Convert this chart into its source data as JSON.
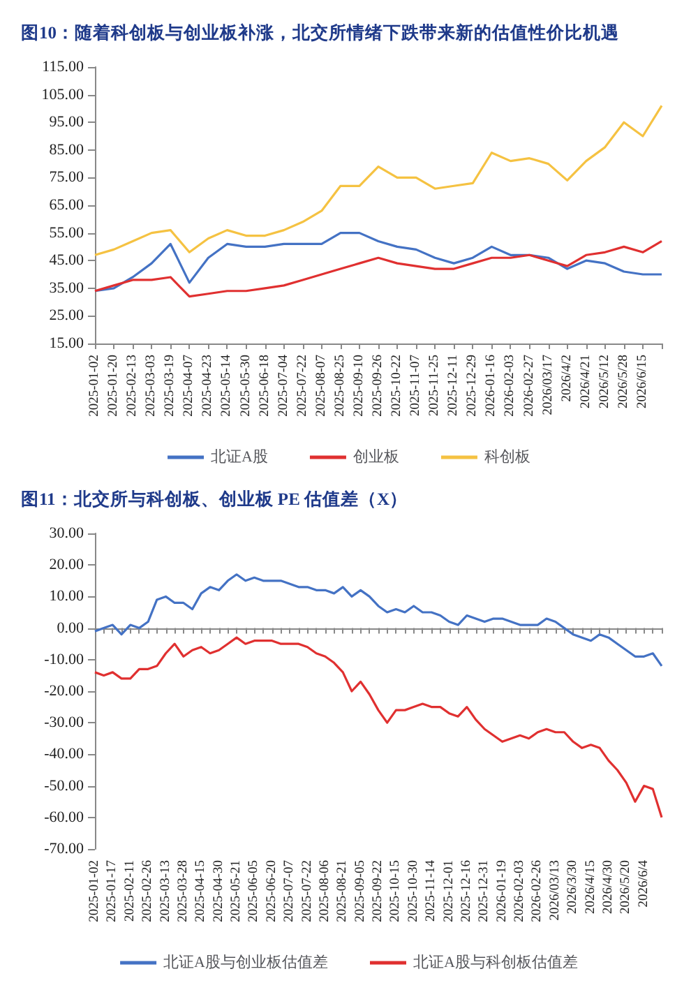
{
  "chart_data": [
    {
      "type": "line",
      "title": "图10：随着科创板与创业板补涨，北交所情绪下跌带来新的估值性价比机遇",
      "categories": [
        "2025-01-02",
        "2025-01-20",
        "2025-02-13",
        "2025-03-03",
        "2025-03-19",
        "2025-04-07",
        "2025-04-23",
        "2025-05-14",
        "2025-05-30",
        "2025-06-18",
        "2025-07-04",
        "2025-07-22",
        "2025-08-07",
        "2025-08-25",
        "2025-09-10",
        "2025-09-26",
        "2025-10-22",
        "2025-11-07",
        "2025-11-25",
        "2025-12-11",
        "2025-12-29",
        "2026-01-16",
        "2026-02-03",
        "2026-02-27",
        "2026/03/17",
        "2026/4/2",
        "2026/4/21",
        "2026/5/12",
        "2026/5/28",
        "2026/6/15",
        null
      ],
      "series": [
        {
          "name": "北证A股",
          "color": "#4472c4",
          "values": [
            34,
            35,
            39,
            44,
            51,
            37,
            46,
            51,
            50,
            50,
            51,
            51,
            51,
            55,
            55,
            52,
            50,
            49,
            46,
            44,
            46,
            50,
            47,
            47,
            46,
            42,
            45,
            44,
            41,
            40,
            40
          ]
        },
        {
          "name": "创业板",
          "color": "#e03030",
          "values": [
            34,
            36,
            38,
            38,
            39,
            32,
            33,
            34,
            34,
            35,
            36,
            38,
            40,
            42,
            44,
            46,
            44,
            43,
            42,
            42,
            44,
            46,
            46,
            47,
            45,
            43,
            47,
            48,
            50,
            48,
            52
          ]
        },
        {
          "name": "科创板",
          "color": "#f5c242",
          "values": [
            47,
            49,
            52,
            55,
            56,
            48,
            53,
            56,
            54,
            54,
            56,
            59,
            63,
            72,
            72,
            79,
            75,
            75,
            71,
            72,
            73,
            84,
            81,
            82,
            80,
            74,
            81,
            86,
            95,
            90,
            101
          ]
        }
      ],
      "ylim": [
        15,
        115
      ],
      "yticks": [
        {
          "value": 15,
          "label": "15.00"
        },
        {
          "value": 25,
          "label": "25.00"
        },
        {
          "value": 35,
          "label": "35.00"
        },
        {
          "value": 45,
          "label": "45.00"
        },
        {
          "value": 55,
          "label": "55.00"
        },
        {
          "value": 65,
          "label": "65.00"
        },
        {
          "value": 75,
          "label": "75.00"
        },
        {
          "value": 85,
          "label": "85.00"
        },
        {
          "value": 95,
          "label": "95.00"
        },
        {
          "value": 105,
          "label": "105.00"
        },
        {
          "value": 115,
          "label": "115.00"
        }
      ],
      "legend": "bottom"
    },
    {
      "type": "line",
      "title": "图11：北交所与科创板、创业板 PE 估值差（X）",
      "categories": [
        "2025-01-02",
        null,
        "2025-01-17",
        null,
        "2025-02-11",
        null,
        "2025-02-26",
        null,
        "2025-03-13",
        null,
        "2025-03-28",
        null,
        "2025-04-15",
        null,
        "2025-04-30",
        null,
        "2025-05-21",
        null,
        "2025-06-05",
        null,
        "2025-06-20",
        null,
        "2025-07-07",
        null,
        "2025-07-22",
        null,
        "2025-08-06",
        null,
        "2025-08-21",
        null,
        "2025-09-05",
        null,
        "2025-09-22",
        null,
        "2025-10-15",
        null,
        "2025-10-30",
        null,
        "2025-11-14",
        null,
        "2025-12-01",
        null,
        "2025-12-16",
        null,
        "2025-12-31",
        null,
        "2026-01-19",
        null,
        "2026-02-03",
        null,
        "2026-02-26",
        null,
        "2026/03/13",
        null,
        "2026/3/30",
        null,
        "2026/4/15",
        null,
        "2026/4/30",
        null,
        "2026/5/20",
        null,
        "2026/6/4",
        null,
        null
      ],
      "series": [
        {
          "name": "北证A股与创业板估值差",
          "color": "#4472c4",
          "values": [
            -1,
            0,
            1,
            -2,
            1,
            0,
            2,
            9,
            10,
            8,
            8,
            6,
            11,
            13,
            12,
            15,
            17,
            15,
            16,
            15,
            15,
            15,
            14,
            13,
            13,
            12,
            12,
            11,
            13,
            10,
            12,
            10,
            7,
            5,
            6,
            5,
            7,
            5,
            5,
            4,
            2,
            1,
            4,
            3,
            2,
            3,
            3,
            2,
            1,
            1,
            1,
            3,
            2,
            0,
            -2,
            -3,
            -4,
            -2,
            -3,
            -5,
            -7,
            -9,
            -9,
            -8,
            -12
          ]
        },
        {
          "name": "北证A股与科创板估值差",
          "color": "#e03030",
          "values": [
            -14,
            -15,
            -14,
            -16,
            -16,
            -13,
            -13,
            -12,
            -8,
            -5,
            -9,
            -7,
            -6,
            -8,
            -7,
            -5,
            -3,
            -5,
            -4,
            -4,
            -4,
            -5,
            -5,
            -5,
            -6,
            -8,
            -9,
            -11,
            -14,
            -20,
            -17,
            -21,
            -26,
            -30,
            -26,
            -26,
            -25,
            -24,
            -25,
            -25,
            -27,
            -28,
            -25,
            -29,
            -32,
            -34,
            -36,
            -35,
            -34,
            -35,
            -33,
            -32,
            -33,
            -33,
            -36,
            -38,
            -37,
            -38,
            -42,
            -45,
            -49,
            -55,
            -50,
            -51,
            -60
          ]
        }
      ],
      "ylim": [
        -70,
        30
      ],
      "yticks": [
        {
          "value": -70,
          "label": "-70.00"
        },
        {
          "value": -60,
          "label": "-60.00"
        },
        {
          "value": -50,
          "label": "-50.00"
        },
        {
          "value": -40,
          "label": "-40.00"
        },
        {
          "value": -30,
          "label": "-30.00"
        },
        {
          "value": -20,
          "label": "-20.00"
        },
        {
          "value": -10,
          "label": "-10.00"
        },
        {
          "value": 0,
          "label": "0.00"
        },
        {
          "value": 10,
          "label": "10.00"
        },
        {
          "value": 20,
          "label": "20.00"
        },
        {
          "value": 30,
          "label": "30.00"
        }
      ],
      "legend": "bottom"
    }
  ]
}
